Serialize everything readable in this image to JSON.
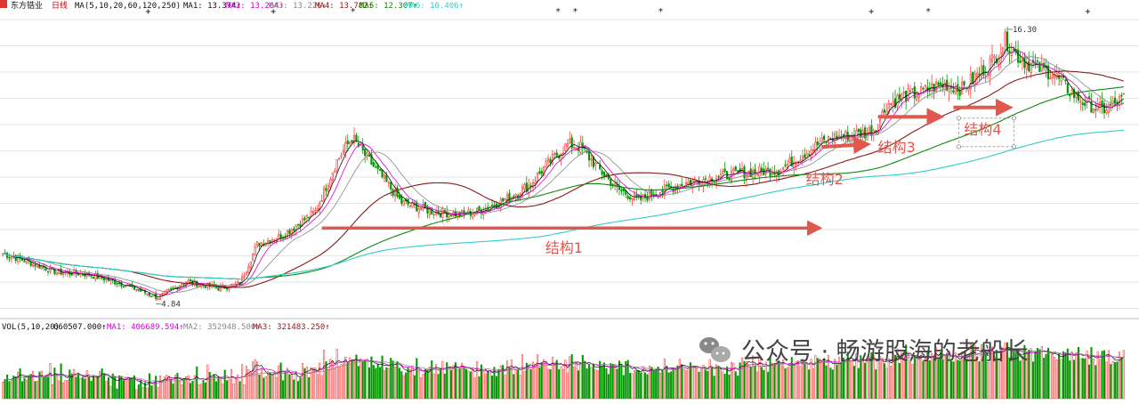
{
  "header": {
    "stock_name": "东方锆业",
    "period": "日线",
    "ma_params": "MA(5,10,20,60,120,250)",
    "items": [
      {
        "label": "MA1: 13.374↑",
        "color": "#111111"
      },
      {
        "label": "MA2: 13.264↑",
        "color": "#d400d4"
      },
      {
        "label": "MA3: 13.226↓",
        "color": "#888888"
      },
      {
        "label": "MA4: 13.782↑",
        "color": "#8b1a1a"
      },
      {
        "label": "MA5: 12.307↑",
        "color": "#118811"
      },
      {
        "label": "MA6: 10.406↑",
        "color": "#33cccc"
      }
    ]
  },
  "volume_header": {
    "params": "VOL(5,10,20)",
    "items": [
      {
        "label": "660507.000↑",
        "color": "#111111"
      },
      {
        "label": "MA1: 406689.594↑",
        "color": "#d400d4"
      },
      {
        "label": "MA2: 352948.500↑",
        "color": "#888888"
      },
      {
        "label": "MA3: 321483.250↑",
        "color": "#8b1a1a"
      }
    ]
  },
  "watermark": {
    "text": "公众号 · 畅游股海的老船长",
    "icon": "wechat-icon"
  },
  "colors": {
    "up": "#ff4040",
    "down": "#009900",
    "arrow": "#e0584e",
    "ma5": "#111111",
    "ma10": "#d400d4",
    "ma20": "#888888",
    "ma60": "#8b1a1a",
    "ma120": "#118811",
    "ma250": "#33cccc"
  },
  "chart_data": {
    "type": "candlestick",
    "title": "东方锆业 日线",
    "xlabel": "",
    "ylabel": "",
    "price_range": [
      4.3,
      17.2
    ],
    "max_price_label": "16.30",
    "min_price_label": "4.84",
    "price_anchors": [
      [
        0,
        6.8
      ],
      [
        10,
        6.5
      ],
      [
        25,
        6.0
      ],
      [
        40,
        5.9
      ],
      [
        55,
        5.5
      ],
      [
        72,
        4.9
      ],
      [
        85,
        5.6
      ],
      [
        100,
        5.3
      ],
      [
        110,
        5.5
      ],
      [
        118,
        7.2
      ],
      [
        130,
        7.6
      ],
      [
        145,
        8.6
      ],
      [
        155,
        10.8
      ],
      [
        162,
        11.8
      ],
      [
        170,
        10.8
      ],
      [
        185,
        9.0
      ],
      [
        200,
        8.6
      ],
      [
        212,
        8.5
      ],
      [
        220,
        8.6
      ],
      [
        235,
        9.2
      ],
      [
        245,
        9.8
      ],
      [
        252,
        10.6
      ],
      [
        262,
        11.5
      ],
      [
        268,
        11.4
      ],
      [
        275,
        10.6
      ],
      [
        285,
        9.6
      ],
      [
        295,
        9.1
      ],
      [
        302,
        9.4
      ],
      [
        315,
        9.8
      ],
      [
        330,
        10.1
      ],
      [
        345,
        10.3
      ],
      [
        360,
        10.4
      ],
      [
        370,
        11.0
      ],
      [
        378,
        11.5
      ],
      [
        385,
        11.8
      ],
      [
        392,
        11.9
      ],
      [
        400,
        12.0
      ],
      [
        405,
        12.2
      ],
      [
        410,
        13.2
      ],
      [
        418,
        13.6
      ],
      [
        425,
        13.7
      ],
      [
        432,
        14.0
      ],
      [
        438,
        14.1
      ],
      [
        445,
        13.9
      ],
      [
        452,
        14.5
      ],
      [
        460,
        15.2
      ],
      [
        465,
        16.0
      ],
      [
        472,
        15.2
      ],
      [
        480,
        14.8
      ],
      [
        487,
        14.6
      ],
      [
        495,
        13.8
      ],
      [
        502,
        13.3
      ],
      [
        510,
        13.0
      ],
      [
        515,
        13.2
      ],
      [
        520,
        13.5
      ]
    ],
    "volume_max": 900000,
    "latest_volume": 660507.0,
    "indicator_values": {
      "MA1": 13.374,
      "MA2": 13.264,
      "MA3": 13.226,
      "MA4": 13.782,
      "MA5": 12.307,
      "MA6": 10.406
    },
    "volume_indicators": {
      "VOL": 660507.0,
      "MA1": 406689.594,
      "MA2": 352948.5,
      "MA3": 321483.25
    },
    "moving_averages": [
      5,
      10,
      20,
      60,
      120,
      250
    ],
    "annotations": [
      {
        "label": "结构1",
        "from": 148,
        "to": 380,
        "from_price": 7.9,
        "to_price": 7.9
      },
      {
        "label": "结构2",
        "from": 380,
        "to": 402,
        "from_price": 11.4,
        "to_price": 11.5
      },
      {
        "label": "结构3",
        "from": 406,
        "to": 436,
        "from_price": 12.7,
        "to_price": 12.7
      },
      {
        "label": "结构4",
        "from": 441,
        "to": 468,
        "from_price": 13.1,
        "to_price": 13.1
      }
    ],
    "event_markers": [
      "+",
      "+",
      "*",
      "*",
      "*",
      "*",
      "+",
      "*",
      "+",
      "+"
    ]
  }
}
